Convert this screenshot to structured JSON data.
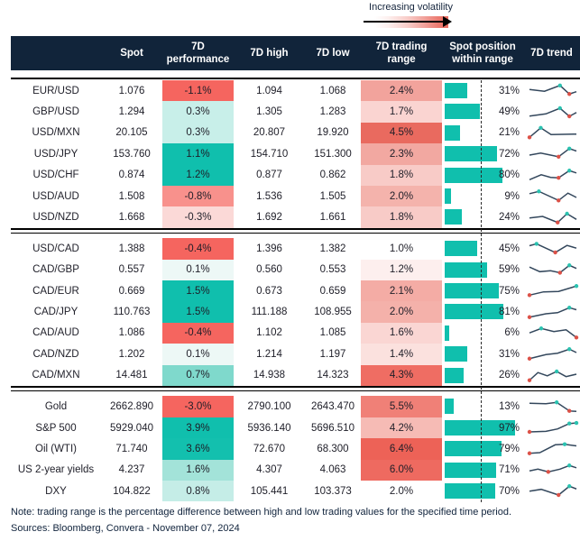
{
  "chart_data": {
    "type": "table",
    "legend_label": "Increasing volatility",
    "headers": {
      "name": "",
      "spot": "Spot",
      "perf": "7D performance",
      "high": "7D high",
      "low": "7D low",
      "range": "7D trading range",
      "pos": "Spot position within range",
      "trend": "7D trend"
    },
    "colors": {
      "header_bg": "#11243A",
      "bar_teal": "#10BFAD",
      "strong_red": "#F5655F",
      "spark_line": "#33475C",
      "spark_hi_dot": "#2BC2B0",
      "spark_lo_dot": "#DC5147"
    },
    "groups": [
      {
        "rows": [
          {
            "name": "EUR/USD",
            "spot": "1.076",
            "perf": "-1.1%",
            "perf_bg": "#F5655F",
            "high": "1.094",
            "low": "1.068",
            "range": "2.4%",
            "range_bg": "#F2A39C",
            "pos_pct": 31,
            "pos_label": "31%",
            "spark": {
              "pts": [
                [
                  0,
                  42
                ],
                [
                  32,
                  55
                ],
                [
                  65,
                  12
                ],
                [
                  85,
                  75
                ],
                [
                  100,
                  58
                ]
              ],
              "hi": 2,
              "lo": 3
            }
          },
          {
            "name": "GBP/USD",
            "spot": "1.294",
            "perf": "0.3%",
            "perf_bg": "#C8EFE9",
            "high": "1.305",
            "low": "1.283",
            "range": "1.7%",
            "range_bg": "#FAD4D1",
            "pos_pct": 49,
            "pos_label": "49%",
            "spark": {
              "pts": [
                [
                  0,
                  78
                ],
                [
                  35,
                  62
                ],
                [
                  65,
                  20
                ],
                [
                  85,
                  80
                ],
                [
                  100,
                  52
                ]
              ],
              "hi": 2,
              "lo": 3
            }
          },
          {
            "name": "USD/MXN",
            "spot": "20.105",
            "perf": "0.3%",
            "perf_bg": "#C8EFE9",
            "high": "20.807",
            "low": "19.920",
            "range": "4.5%",
            "range_bg": "#E96A5F",
            "pos_pct": 21,
            "pos_label": "21%",
            "spark": {
              "pts": [
                [
                  0,
                  82
                ],
                [
                  24,
                  12
                ],
                [
                  46,
                  62
                ],
                [
                  100,
                  58
                ]
              ],
              "hi": 1,
              "lo": 0
            }
          },
          {
            "name": "USD/JPY",
            "spot": "153.760",
            "perf": "1.1%",
            "perf_bg": "#10BFAD",
            "high": "154.710",
            "low": "151.300",
            "range": "2.3%",
            "range_bg": "#F2A8A1",
            "pos_pct": 72,
            "pos_label": "72%",
            "spark": {
              "pts": [
                [
                  0,
                  60
                ],
                [
                  24,
                  45
                ],
                [
                  45,
                  60
                ],
                [
                  62,
                  72
                ],
                [
                  85,
                  12
                ],
                [
                  100,
                  30
                ]
              ],
              "hi": 4,
              "lo": 3
            }
          },
          {
            "name": "USD/CHF",
            "spot": "0.874",
            "perf": "1.2%",
            "perf_bg": "#10BFAD",
            "high": "0.877",
            "low": "0.862",
            "range": "1.8%",
            "range_bg": "#F8CBC7",
            "pos_pct": 80,
            "pos_label": "80%",
            "spark": {
              "pts": [
                [
                  0,
                  82
                ],
                [
                  25,
                  45
                ],
                [
                  45,
                  65
                ],
                [
                  62,
                  68
                ],
                [
                  85,
                  15
                ],
                [
                  100,
                  32
                ]
              ],
              "hi": 4,
              "lo": 3
            }
          },
          {
            "name": "USD/AUD",
            "spot": "1.508",
            "perf": "-0.8%",
            "perf_bg": "#F8918C",
            "high": "1.536",
            "low": "1.505",
            "range": "2.0%",
            "range_bg": "#F4B3AC",
            "pos_pct": 9,
            "pos_label": "9%",
            "spark": {
              "pts": [
                [
                  0,
                  32
                ],
                [
                  20,
                  15
                ],
                [
                  62,
                  82
                ],
                [
                  82,
                  28
                ],
                [
                  100,
                  60
                ]
              ],
              "hi": 1,
              "lo": 2
            }
          },
          {
            "name": "USD/NZD",
            "spot": "1.668",
            "perf": "-0.3%",
            "perf_bg": "#FBD9D7",
            "high": "1.692",
            "low": "1.661",
            "range": "1.8%",
            "range_bg": "#F8CBC7",
            "pos_pct": 24,
            "pos_label": "24%",
            "spark": {
              "pts": [
                [
                  0,
                  52
                ],
                [
                  28,
                  40
                ],
                [
                  60,
                  85
                ],
                [
                  80,
                  20
                ],
                [
                  100,
                  62
                ]
              ],
              "hi": 3,
              "lo": 2
            }
          }
        ]
      },
      {
        "rows": [
          {
            "name": "USD/CAD",
            "spot": "1.388",
            "perf": "-0.4%",
            "perf_bg": "#F5655F",
            "high": "1.396",
            "low": "1.382",
            "range": "1.0%",
            "range_bg": "#FFFFFF",
            "pos_pct": 45,
            "pos_label": "45%",
            "spark": {
              "pts": [
                [
                  0,
                  30
                ],
                [
                  15,
                  16
                ],
                [
                  55,
                  80
                ],
                [
                  80,
                  28
                ],
                [
                  100,
                  48
                ]
              ],
              "hi": 1,
              "lo": 2
            }
          },
          {
            "name": "CAD/GBP",
            "spot": "0.557",
            "perf": "0.1%",
            "perf_bg": "#EDF8F6",
            "high": "0.560",
            "low": "0.553",
            "range": "1.2%",
            "range_bg": "#FDEFEE",
            "pos_pct": 59,
            "pos_label": "59%",
            "spark": {
              "pts": [
                [
                  0,
                  28
                ],
                [
                  22,
                  62
                ],
                [
                  45,
                  55
                ],
                [
                  65,
                  70
                ],
                [
                  85,
                  15
                ],
                [
                  100,
                  38
                ]
              ],
              "hi": 4,
              "lo": 3
            }
          },
          {
            "name": "CAD/EUR",
            "spot": "0.669",
            "perf": "1.5%",
            "perf_bg": "#10BFAD",
            "high": "0.673",
            "low": "0.659",
            "range": "2.1%",
            "range_bg": "#F4ACA5",
            "pos_pct": 75,
            "pos_label": "75%",
            "spark": {
              "pts": [
                [
                  0,
                  82
                ],
                [
                  30,
                  58
                ],
                [
                  62,
                  55
                ],
                [
                  100,
                  15
                ]
              ],
              "hi": 3,
              "lo": 0
            }
          },
          {
            "name": "CAD/JPY",
            "spot": "110.763",
            "perf": "1.5%",
            "perf_bg": "#10BFAD",
            "high": "111.188",
            "low": "108.955",
            "range": "2.0%",
            "range_bg": "#F4B1AA",
            "pos_pct": 81,
            "pos_label": "81%",
            "spark": {
              "pts": [
                [
                  0,
                  85
                ],
                [
                  35,
                  60
                ],
                [
                  60,
                  52
                ],
                [
                  85,
                  15
                ],
                [
                  100,
                  30
                ]
              ],
              "hi": 3,
              "lo": 0
            }
          },
          {
            "name": "CAD/AUD",
            "spot": "1.086",
            "perf": "-0.4%",
            "perf_bg": "#F5655F",
            "high": "1.102",
            "low": "1.085",
            "range": "1.6%",
            "range_bg": "#FAD6D3",
            "pos_pct": 6,
            "pos_label": "6%",
            "spark": {
              "pts": [
                [
                  0,
                  48
                ],
                [
                  25,
                  15
                ],
                [
                  52,
                  38
                ],
                [
                  78,
                  25
                ],
                [
                  100,
                  82
                ]
              ],
              "hi": 1,
              "lo": 4
            }
          },
          {
            "name": "CAD/NZD",
            "spot": "1.202",
            "perf": "0.1%",
            "perf_bg": "#EDF8F6",
            "high": "1.214",
            "low": "1.197",
            "range": "1.4%",
            "range_bg": "#FBE1DE",
            "pos_pct": 31,
            "pos_label": "31%",
            "spark": {
              "pts": [
                [
                  0,
                  85
                ],
                [
                  35,
                  55
                ],
                [
                  60,
                  45
                ],
                [
                  85,
                  15
                ],
                [
                  100,
                  40
                ]
              ],
              "hi": 3,
              "lo": 0
            }
          },
          {
            "name": "CAD/MXN",
            "spot": "14.481",
            "perf": "0.7%",
            "perf_bg": "#7FD9CC",
            "high": "14.938",
            "low": "14.323",
            "range": "4.3%",
            "range_bg": "#EF6D63",
            "pos_pct": 26,
            "pos_label": "26%",
            "spark": {
              "pts": [
                [
                  0,
                  85
                ],
                [
                  18,
                  28
                ],
                [
                  38,
                  52
                ],
                [
                  58,
                  20
                ],
                [
                  78,
                  58
                ],
                [
                  100,
                  40
                ]
              ],
              "hi": 3,
              "lo": 0
            }
          }
        ]
      },
      {
        "rows": [
          {
            "name": "Gold",
            "spot": "2662.890",
            "perf": "-3.0%",
            "perf_bg": "#F5655F",
            "high": "2790.100",
            "low": "2643.470",
            "range": "5.5%",
            "range_bg": "#F08077",
            "pos_pct": 13,
            "pos_label": "13%",
            "spark": {
              "pts": [
                [
                  0,
                  22
                ],
                [
                  35,
                  25
                ],
                [
                  58,
                  15
                ],
                [
                  85,
                  78
                ],
                [
                  100,
                  82
                ]
              ],
              "hi": 2,
              "lo": 3
            }
          },
          {
            "name": "S&P 500",
            "spot": "5929.040",
            "perf": "3.9%",
            "perf_bg": "#10BFAD",
            "high": "5936.140",
            "low": "5696.510",
            "range": "4.2%",
            "range_bg": "#F6BBB5",
            "pos_pct": 97,
            "pos_label": "97%",
            "spark": {
              "pts": [
                [
                  0,
                  80
                ],
                [
                  35,
                  76
                ],
                [
                  60,
                  58
                ],
                [
                  85,
                  18
                ],
                [
                  100,
                  14
                ]
              ],
              "hi": 3,
              "hi2": 4,
              "lo": 0
            }
          },
          {
            "name": "Oil (WTI)",
            "spot": "71.740",
            "perf": "3.6%",
            "perf_bg": "#13C0AE",
            "high": "72.670",
            "low": "68.300",
            "range": "6.4%",
            "range_bg": "#ED6257",
            "pos_pct": 79,
            "pos_label": "79%",
            "spark": {
              "pts": [
                [
                  0,
                  85
                ],
                [
                  22,
                  80
                ],
                [
                  55,
                  22
                ],
                [
                  75,
                  18
                ],
                [
                  100,
                  30
                ]
              ],
              "hi": 3,
              "lo": 0
            }
          },
          {
            "name": "US 2-year yields",
            "spot": "4.237",
            "perf": "1.6%",
            "perf_bg": "#A3E3D9",
            "high": "4.307",
            "low": "4.063",
            "range": "6.0%",
            "range_bg": "#EE6A60",
            "pos_pct": 71,
            "pos_label": "71%",
            "spark": {
              "pts": [
                [
                  0,
                  55
                ],
                [
                  18,
                  42
                ],
                [
                  40,
                  62
                ],
                [
                  65,
                  42
                ],
                [
                  85,
                  15
                ],
                [
                  100,
                  32
                ]
              ],
              "hi": 4,
              "lo": 2
            }
          },
          {
            "name": "DXY",
            "spot": "104.822",
            "perf": "0.8%",
            "perf_bg": "#C5EDE7",
            "high": "105.441",
            "low": "103.373",
            "range": "2.0%",
            "range_bg": "#FFFFFF",
            "pos_pct": 70,
            "pos_label": "70%",
            "spark": {
              "pts": [
                [
                  0,
                  52
                ],
                [
                  25,
                  38
                ],
                [
                  62,
                  80
                ],
                [
                  85,
                  15
                ],
                [
                  100,
                  35
                ]
              ],
              "hi": 3,
              "lo": 2
            }
          }
        ]
      }
    ],
    "notes": {
      "note": "Note: trading range is the percentage difference between high and low trading values for the specified time period.",
      "sources": "Sources: Bloomberg, Convera - November 07, 2024"
    }
  }
}
